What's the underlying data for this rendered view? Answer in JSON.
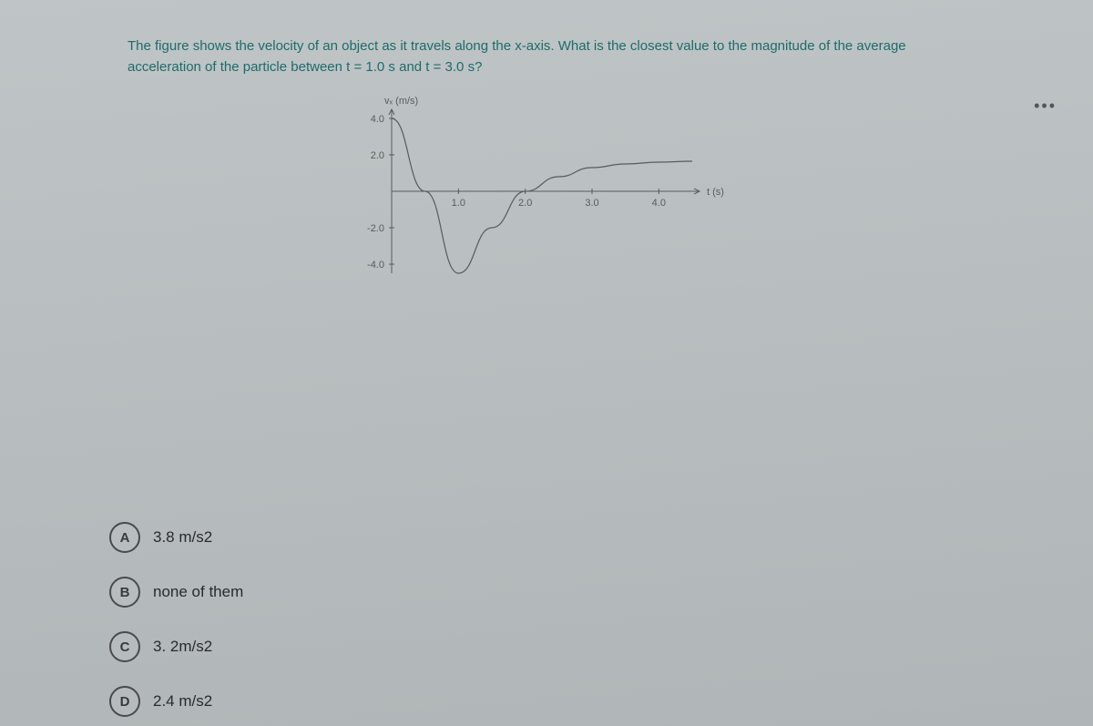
{
  "question": {
    "line1": "The figure shows the velocity of an object as it travels along the x-axis. What is the closest value to the magnitude of the average",
    "line2": "acceleration of the particle between t = 1.0 s and t = 3.0 s?"
  },
  "ellipsis": "•••",
  "chart": {
    "type": "line",
    "y_axis_label": "vₓ (m/s)",
    "x_axis_label": "t (s)",
    "xlim": [
      0,
      4.5
    ],
    "ylim": [
      -4.5,
      4.5
    ],
    "x_ticks": [
      1.0,
      2.0,
      3.0,
      4.0
    ],
    "x_tick_labels": [
      "1.0",
      "2.0",
      "3.0",
      "4.0"
    ],
    "y_ticks": [
      -4.0,
      -2.0,
      2.0,
      4.0
    ],
    "y_tick_labels": [
      "-4.0",
      "-2.0",
      "2.0",
      "4.0"
    ],
    "line_color": "#5a5a5a",
    "line_width": 1.2,
    "axis_color": "#5a5a5a",
    "tick_font_size": 11,
    "points": [
      {
        "x": 0.0,
        "y": 4.0
      },
      {
        "x": 0.5,
        "y": 0.0
      },
      {
        "x": 1.0,
        "y": -4.5
      },
      {
        "x": 1.5,
        "y": -2.0
      },
      {
        "x": 2.0,
        "y": 0.0
      },
      {
        "x": 2.5,
        "y": 0.8
      },
      {
        "x": 3.0,
        "y": 1.3
      },
      {
        "x": 3.5,
        "y": 1.5
      },
      {
        "x": 4.0,
        "y": 1.6
      },
      {
        "x": 4.5,
        "y": 1.65
      }
    ]
  },
  "options": [
    {
      "letter": "A",
      "text": "3.8 m/s2"
    },
    {
      "letter": "B",
      "text": "none of them"
    },
    {
      "letter": "C",
      "text": "3. 2m/s2"
    },
    {
      "letter": "D",
      "text": "2.4 m/s2"
    }
  ]
}
